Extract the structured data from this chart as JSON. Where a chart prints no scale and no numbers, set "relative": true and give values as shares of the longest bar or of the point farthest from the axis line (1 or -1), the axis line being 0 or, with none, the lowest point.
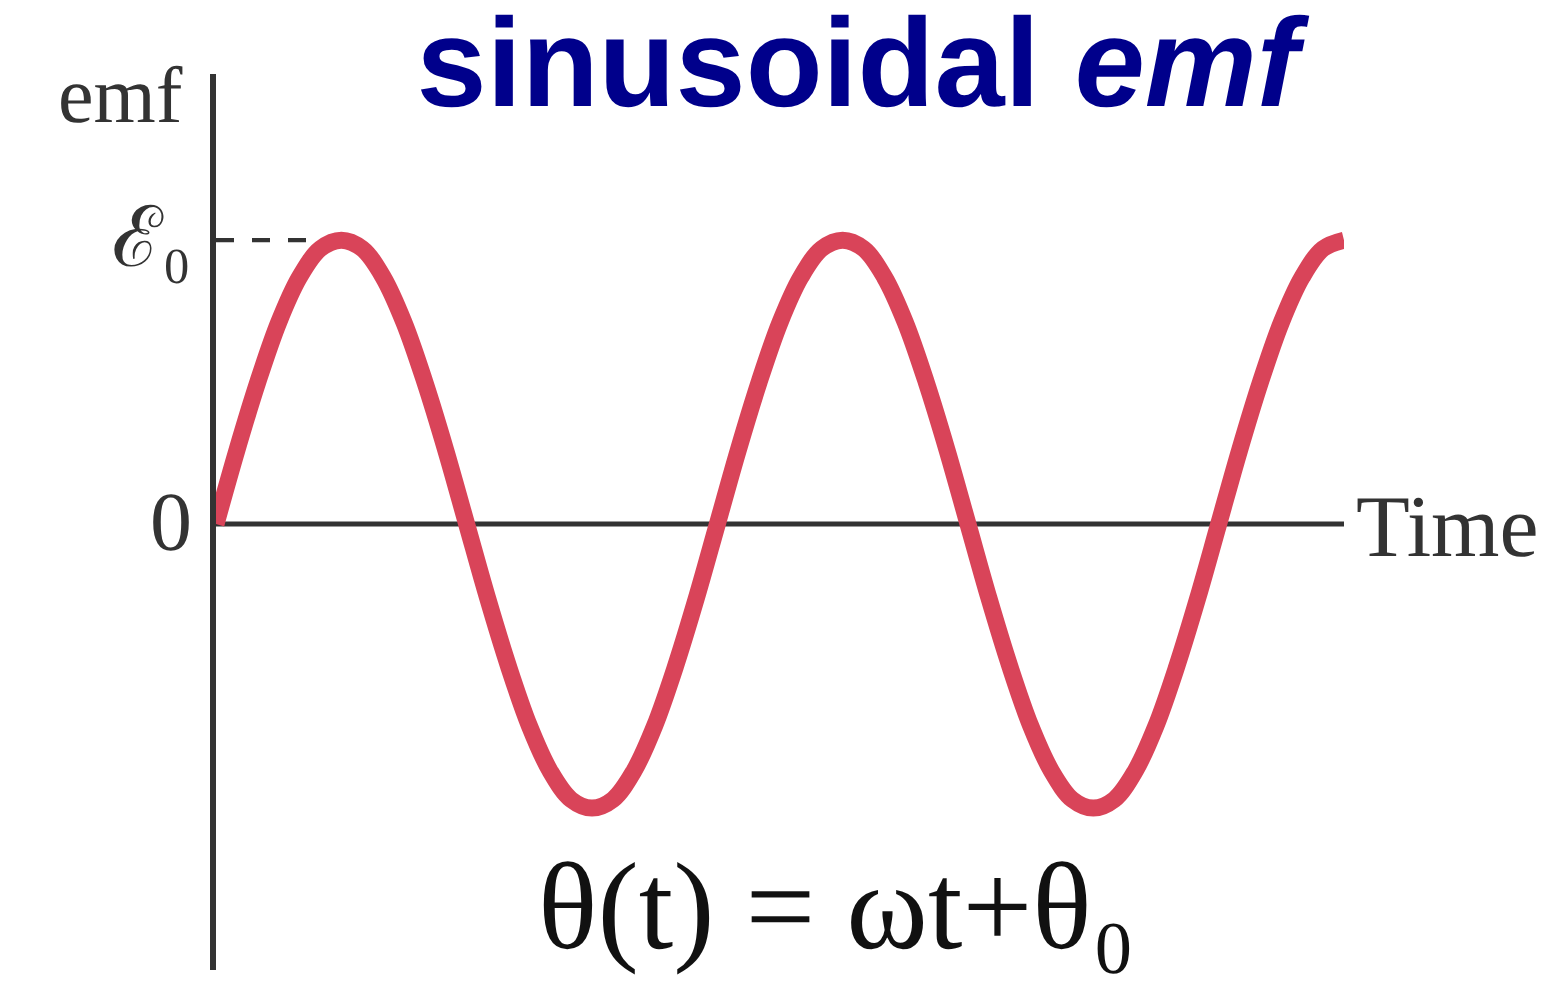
{
  "chart_data": {
    "type": "line",
    "title": "sinusoidal emf",
    "xlabel": "Time",
    "ylabel": "emf",
    "relative": true,
    "categories": [
      null,
      null,
      null,
      null,
      null,
      null,
      null,
      null,
      null,
      null,
      null,
      null,
      null,
      null,
      null,
      null,
      null,
      null,
      null,
      null,
      null,
      null,
      null,
      null,
      null,
      null,
      null,
      null,
      null,
      null,
      null,
      null,
      null,
      null,
      null,
      null,
      null,
      null,
      null,
      null,
      null,
      null,
      null,
      null,
      null,
      null,
      null,
      null,
      null,
      null,
      null,
      null,
      null,
      null,
      null
    ],
    "series": [
      {
        "color": "#d94459",
        "values": [
          0,
          0.26,
          0.5,
          0.71,
          0.87,
          0.97,
          1,
          0.97,
          0.87,
          0.71,
          0.5,
          0.26,
          0,
          -0.26,
          -0.5,
          -0.71,
          -0.87,
          -0.97,
          -1,
          -0.97,
          -0.87,
          -0.71,
          -0.5,
          -0.26,
          0,
          0.26,
          0.5,
          0.71,
          0.87,
          0.97,
          1,
          0.97,
          0.87,
          0.71,
          0.5,
          0.26,
          0,
          -0.26,
          -0.5,
          -0.71,
          -0.87,
          -0.97,
          -1,
          -0.97,
          -0.87,
          -0.71,
          -0.5,
          -0.26,
          0,
          0.26,
          0.5,
          0.71,
          0.87,
          0.97,
          1
        ]
      }
    ],
    "ref_lines": [
      {
        "axis": "y",
        "value": 0,
        "label": "0",
        "color": "#333333"
      },
      {
        "axis": "y",
        "value": 1,
        "label": "ℰ₀",
        "color": "#333333",
        "line_style": "dashed"
      }
    ],
    "annotations": [
      "θ(t) = ωt+θ₀"
    ]
  }
}
